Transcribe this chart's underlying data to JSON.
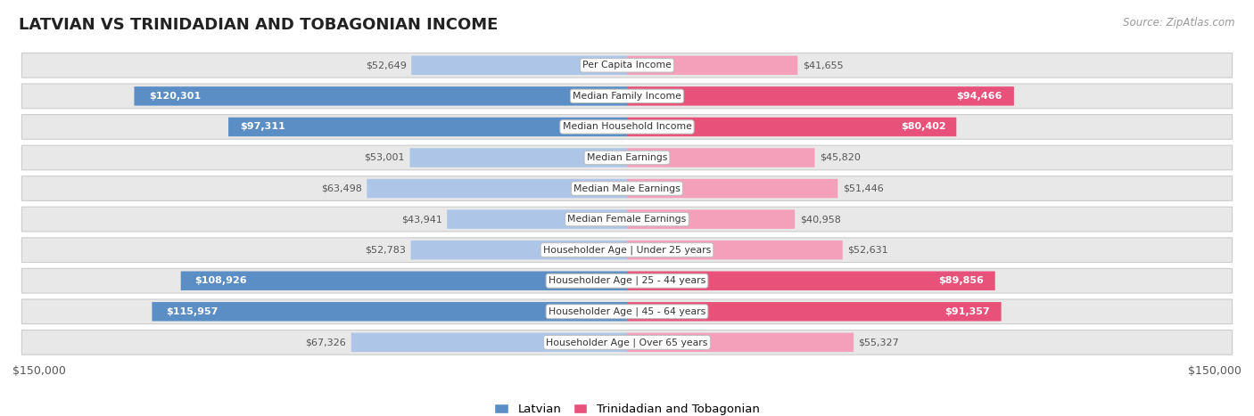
{
  "title": "LATVIAN VS TRINIDADIAN AND TOBAGONIAN INCOME",
  "source": "Source: ZipAtlas.com",
  "categories": [
    "Per Capita Income",
    "Median Family Income",
    "Median Household Income",
    "Median Earnings",
    "Median Male Earnings",
    "Median Female Earnings",
    "Householder Age | Under 25 years",
    "Householder Age | 25 - 44 years",
    "Householder Age | 45 - 64 years",
    "Householder Age | Over 65 years"
  ],
  "latvian_values": [
    52649,
    120301,
    97311,
    53001,
    63498,
    43941,
    52783,
    108926,
    115957,
    67326
  ],
  "trinidadian_values": [
    41655,
    94466,
    80402,
    45820,
    51446,
    40958,
    52631,
    89856,
    91357,
    55327
  ],
  "latvian_labels": [
    "$52,649",
    "$120,301",
    "$97,311",
    "$53,001",
    "$63,498",
    "$43,941",
    "$52,783",
    "$108,926",
    "$115,957",
    "$67,326"
  ],
  "trinidadian_labels": [
    "$41,655",
    "$94,466",
    "$80,402",
    "$45,820",
    "$51,446",
    "$40,958",
    "$52,631",
    "$89,856",
    "$91,357",
    "$55,327"
  ],
  "latvian_color_strong": "#5b8ec4",
  "latvian_color_light": "#adc6e8",
  "trinidadian_color_strong": "#e8527a",
  "trinidadian_color_light": "#f4a0ba",
  "max_value": 150000,
  "xlabel_left": "$150,000",
  "xlabel_right": "$150,000",
  "legend_latvian": "Latvian",
  "legend_trinidadian": "Trinidadian and Tobagonian",
  "bg_color": "#ffffff",
  "row_bg_color": "#e8e8e8",
  "row_border_color": "#cccccc",
  "label_threshold": 75000,
  "title_fontsize": 13,
  "label_fontsize": 8,
  "cat_fontsize": 7.8
}
